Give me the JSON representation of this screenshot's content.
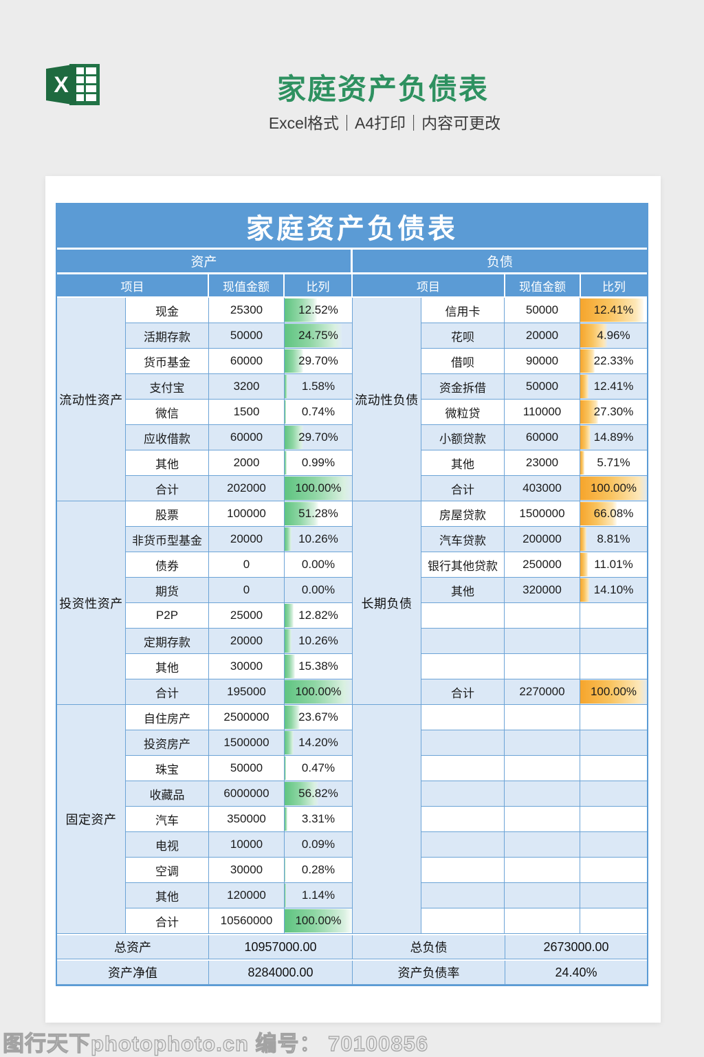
{
  "page": {
    "title": "家庭资产负债表",
    "subtitle": "Excel格式｜A4打印｜内容可更改",
    "watermark": "图行天下photophoto.cn 编号： 70100856"
  },
  "colors": {
    "header_blue": "#5b9bd5",
    "row_alt_blue": "#dbe8f6",
    "grid_blue": "#6ba3d6",
    "bar_green": "#5fc481",
    "bar_orange": "#f6a52c",
    "title_green": "#2e9160",
    "excel_green": "#217346",
    "background_gray": "#ececec"
  },
  "table": {
    "title": "家庭资产负债表",
    "left_header": "资产",
    "right_header": "负债",
    "columns": [
      "项目",
      "现值金额",
      "比列"
    ],
    "asset_sections": [
      {
        "group": "流动性资产",
        "rows": [
          {
            "item": "现金",
            "amount": "25300",
            "pct": "12.52%",
            "bar": 48
          },
          {
            "item": "活期存款",
            "amount": "50000",
            "pct": "24.75%",
            "bar": 85
          },
          {
            "item": "货币基金",
            "amount": "60000",
            "pct": "29.70%",
            "bar": 28
          },
          {
            "item": "支付宝",
            "amount": "3200",
            "pct": "1.58%",
            "bar": 4
          },
          {
            "item": "微信",
            "amount": "1500",
            "pct": "0.74%",
            "bar": 2
          },
          {
            "item": "应收借款",
            "amount": "60000",
            "pct": "29.70%",
            "bar": 28
          },
          {
            "item": "其他",
            "amount": "2000",
            "pct": "0.99%",
            "bar": 3
          },
          {
            "item": "合计",
            "amount": "202000",
            "pct": "100.00%",
            "bar": 100
          }
        ]
      },
      {
        "group": "投资性资产",
        "rows": [
          {
            "item": "股票",
            "amount": "100000",
            "pct": "51.28%",
            "bar": 50
          },
          {
            "item": "非货币型基金",
            "amount": "20000",
            "pct": "10.26%",
            "bar": 10
          },
          {
            "item": "债券",
            "amount": "0",
            "pct": "0.00%",
            "bar": 0
          },
          {
            "item": "期货",
            "amount": "0",
            "pct": "0.00%",
            "bar": 0
          },
          {
            "item": "P2P",
            "amount": "25000",
            "pct": "12.82%",
            "bar": 13
          },
          {
            "item": "定期存款",
            "amount": "20000",
            "pct": "10.26%",
            "bar": 10
          },
          {
            "item": "其他",
            "amount": "30000",
            "pct": "15.38%",
            "bar": 15
          },
          {
            "item": "合计",
            "amount": "195000",
            "pct": "100.00%",
            "bar": 100
          }
        ]
      },
      {
        "group": "固定资产",
        "rows": [
          {
            "item": "自住房产",
            "amount": "2500000",
            "pct": "23.67%",
            "bar": 22
          },
          {
            "item": "投资房产",
            "amount": "1500000",
            "pct": "14.20%",
            "bar": 13
          },
          {
            "item": "珠宝",
            "amount": "50000",
            "pct": "0.47%",
            "bar": 2
          },
          {
            "item": "收藏品",
            "amount": "6000000",
            "pct": "56.82%",
            "bar": 50
          },
          {
            "item": "汽车",
            "amount": "350000",
            "pct": "3.31%",
            "bar": 4
          },
          {
            "item": "电视",
            "amount": "10000",
            "pct": "0.09%",
            "bar": 0
          },
          {
            "item": "空调",
            "amount": "30000",
            "pct": "0.28%",
            "bar": 1
          },
          {
            "item": "其他",
            "amount": "120000",
            "pct": "1.14%",
            "bar": 2
          },
          {
            "item": "合计",
            "amount": "10560000",
            "pct": "100.00%",
            "bar": 100
          }
        ]
      }
    ],
    "liability_sections": [
      {
        "group": "流动性负债",
        "rows": [
          {
            "item": "信用卡",
            "amount": "50000",
            "pct": "12.41%",
            "bar": 95
          },
          {
            "item": "花呗",
            "amount": "20000",
            "pct": "4.96%",
            "bar": 40
          },
          {
            "item": "借呗",
            "amount": "90000",
            "pct": "22.33%",
            "bar": 22
          },
          {
            "item": "资金拆借",
            "amount": "50000",
            "pct": "12.41%",
            "bar": 12
          },
          {
            "item": "微粒贷",
            "amount": "110000",
            "pct": "27.30%",
            "bar": 27
          },
          {
            "item": "小额贷款",
            "amount": "60000",
            "pct": "14.89%",
            "bar": 15
          },
          {
            "item": "其他",
            "amount": "23000",
            "pct": "5.71%",
            "bar": 6
          },
          {
            "item": "合计",
            "amount": "403000",
            "pct": "100.00%",
            "bar": 100
          }
        ]
      },
      {
        "group": "长期负债",
        "rows": [
          {
            "item": "房屋贷款",
            "amount": "1500000",
            "pct": "66.08%",
            "bar": 55
          },
          {
            "item": "汽车贷款",
            "amount": "200000",
            "pct": "8.81%",
            "bar": 9
          },
          {
            "item": "银行其他贷款",
            "amount": "250000",
            "pct": "11.01%",
            "bar": 11
          },
          {
            "item": "其他",
            "amount": "320000",
            "pct": "14.10%",
            "bar": 13
          },
          {
            "item": "",
            "amount": "",
            "pct": "",
            "bar": 0
          },
          {
            "item": "",
            "amount": "",
            "pct": "",
            "bar": 0
          },
          {
            "item": "",
            "amount": "",
            "pct": "",
            "bar": 0
          },
          {
            "item": "合计",
            "amount": "2270000",
            "pct": "100.00%",
            "bar": 100
          }
        ]
      },
      {
        "group": "",
        "rows": [
          {
            "item": "",
            "amount": "",
            "pct": "",
            "bar": 0
          },
          {
            "item": "",
            "amount": "",
            "pct": "",
            "bar": 0
          },
          {
            "item": "",
            "amount": "",
            "pct": "",
            "bar": 0
          },
          {
            "item": "",
            "amount": "",
            "pct": "",
            "bar": 0
          },
          {
            "item": "",
            "amount": "",
            "pct": "",
            "bar": 0
          },
          {
            "item": "",
            "amount": "",
            "pct": "",
            "bar": 0
          },
          {
            "item": "",
            "amount": "",
            "pct": "",
            "bar": 0
          },
          {
            "item": "",
            "amount": "",
            "pct": "",
            "bar": 0
          },
          {
            "item": "",
            "amount": "",
            "pct": "",
            "bar": 0
          }
        ]
      }
    ],
    "summary": [
      {
        "l_label": "总资产",
        "l_value": "10957000.00",
        "r_label": "总负债",
        "r_value": "2673000.00"
      },
      {
        "l_label": "资产净值",
        "l_value": "8284000.00",
        "r_label": "资产负债率",
        "r_value": "24.40%"
      }
    ]
  }
}
